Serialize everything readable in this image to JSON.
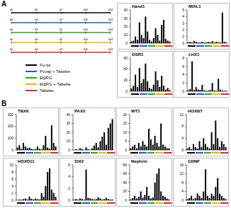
{
  "panel_labels": [
    "A",
    "B"
  ],
  "timeline": {
    "days": [
      "d0",
      "d3",
      "d7",
      "d10",
      "d14"
    ]
  },
  "protocols": [
    {
      "name": "Fu-Ipi",
      "color": "#000000"
    },
    {
      "name": "Pcvajt + Tabebe",
      "color": "#1f5fb4"
    },
    {
      "name": "EtβFG",
      "color": "#2ca02c"
    },
    {
      "name": "EtβFG + Tabebe",
      "color": "#e6b800"
    },
    {
      "name": "Tabebe",
      "color": "#d62728"
    }
  ],
  "chart_data": [
    {
      "type": "bar",
      "title": "Hand1",
      "categories": [
        null,
        null,
        null,
        null,
        null,
        null,
        null,
        null,
        null,
        null,
        null,
        null,
        null,
        null,
        null,
        null,
        null,
        null,
        null,
        null
      ],
      "values": [
        2,
        3,
        8,
        4,
        25,
        10,
        6,
        32,
        14,
        4,
        2,
        6,
        18,
        10,
        3,
        22,
        28,
        5,
        3,
        2
      ],
      "color": "#000000",
      "ylim": [
        0,
        40
      ],
      "yticks": [
        0,
        10,
        20,
        30,
        40
      ],
      "tick_labels": "y"
    },
    {
      "type": "bar",
      "title": "MIXL1",
      "categories": [
        null,
        null,
        null,
        null,
        null,
        null,
        null,
        null,
        null,
        null,
        null,
        null,
        null,
        null,
        null,
        null,
        null,
        null,
        null,
        null
      ],
      "values": [
        0.1,
        0.2,
        0.1,
        0.3,
        0.2,
        0.1,
        0.1,
        0.2,
        0.1,
        0.1,
        0.2,
        0.1,
        0.3,
        0.1,
        0.2,
        0.1,
        0.1,
        4.6,
        0.2,
        0.1
      ],
      "color": "#000000",
      "ylim": [
        0,
        5
      ],
      "yticks": [
        0,
        1,
        2,
        3,
        4,
        5
      ],
      "tick_labels": "y"
    },
    {
      "type": "bar",
      "title": "OSR1",
      "categories": [
        null,
        null,
        null,
        null,
        null,
        null,
        null,
        null,
        null,
        null,
        null,
        null,
        null,
        null,
        null,
        null,
        null,
        null,
        null,
        null
      ],
      "values": [
        5,
        10,
        30,
        8,
        42,
        15,
        22,
        50,
        18,
        6,
        4,
        12,
        36,
        20,
        8,
        28,
        10,
        3,
        6,
        2
      ],
      "color": "#000000",
      "ylim": [
        0,
        60
      ],
      "yticks": [
        0,
        20,
        40,
        60
      ],
      "tick_labels": "y"
    },
    {
      "type": "bar",
      "title": "LHX1",
      "categories": [
        null,
        null,
        null,
        null,
        null,
        null,
        null,
        null,
        null,
        null,
        null,
        null,
        null,
        null,
        null,
        null,
        null,
        null,
        null,
        null
      ],
      "values": [
        0.2,
        0.5,
        7.2,
        0.3,
        1,
        0.4,
        0.3,
        1.5,
        0.2,
        0.1,
        0.2,
        0.3,
        2,
        0.2,
        0.1,
        3,
        0.4,
        0.2,
        0.1,
        0.1
      ],
      "color": "#000000",
      "ylim": [
        0,
        8
      ],
      "yticks": [
        0,
        2,
        4,
        6,
        8
      ],
      "tick_labels": "y"
    },
    {
      "type": "bar",
      "title": "TBX6",
      "categories": [
        null,
        null,
        null,
        null,
        null,
        null,
        null,
        null,
        null,
        null,
        null,
        null,
        null,
        null,
        null,
        null,
        null,
        null,
        null,
        null
      ],
      "values": [
        20,
        40,
        10,
        60,
        30,
        15,
        20,
        10,
        5,
        8,
        30,
        10,
        5,
        40,
        120,
        20,
        10,
        210,
        60,
        30
      ],
      "color": "#000000",
      "ylim": [
        0,
        300
      ],
      "yticks": [
        0,
        100,
        200,
        300
      ],
      "tick_labels": "y"
    },
    {
      "type": "bar",
      "title": "PAX2",
      "categories": [
        null,
        null,
        null,
        null,
        null,
        null,
        null,
        null,
        null,
        null,
        null,
        null,
        null,
        null,
        null,
        null,
        null,
        null,
        null,
        null
      ],
      "values": [
        0,
        1,
        0,
        2,
        1,
        0,
        3,
        1,
        0,
        2,
        5,
        8,
        3,
        10,
        15,
        20,
        6,
        25,
        30,
        35
      ],
      "color": "#000000",
      "ylim": [
        0,
        40
      ],
      "yticks": [
        0,
        10,
        20,
        30,
        40
      ],
      "tick_labels": "y"
    },
    {
      "type": "bar",
      "title": "WT1",
      "categories": [
        null,
        null,
        null,
        null,
        null,
        null,
        null,
        null,
        null,
        null,
        null,
        null,
        null,
        null,
        null,
        null,
        null,
        null,
        null,
        null
      ],
      "values": [
        1,
        2,
        3,
        1,
        4,
        2,
        5,
        3,
        2,
        12,
        6,
        3,
        8,
        4,
        2,
        15,
        3,
        2,
        1,
        1
      ],
      "color": "#000000",
      "ylim": [
        0,
        20
      ],
      "yticks": [
        0,
        5,
        10,
        15,
        20
      ],
      "tick_labels": "y"
    },
    {
      "type": "bar",
      "title": "HOXB7",
      "categories": [
        null,
        null,
        null,
        null,
        null,
        null,
        null,
        null,
        null,
        null,
        null,
        null,
        null,
        null,
        null,
        null,
        null,
        null,
        null,
        null
      ],
      "values": [
        0.5,
        1,
        0.3,
        2,
        1,
        0.5,
        3,
        1,
        4,
        2,
        1,
        0.5,
        6,
        2,
        10,
        4,
        1,
        3,
        2,
        1
      ],
      "color": "#000000",
      "ylim": [
        0,
        12
      ],
      "yticks": [
        0,
        4,
        8,
        12
      ],
      "tick_labels": "y"
    },
    {
      "type": "bar",
      "title": "HOXD11",
      "categories": [
        null,
        null,
        null,
        null,
        null,
        null,
        null,
        null,
        null,
        null,
        null,
        null,
        null,
        null,
        null,
        null,
        null,
        null,
        null,
        null
      ],
      "values": [
        0,
        0.2,
        0.1,
        0.3,
        0.5,
        0.2,
        1,
        0.4,
        0.2,
        0.5,
        0.3,
        0.2,
        2,
        1,
        4,
        8,
        9,
        3,
        2,
        1
      ],
      "color": "#000000",
      "ylim": [
        0,
        10
      ],
      "yticks": [
        0,
        2,
        4,
        6,
        8,
        10
      ],
      "tick_labels": "y"
    },
    {
      "type": "bar",
      "title": "SIX2",
      "categories": [
        null,
        null,
        null,
        null,
        null,
        null,
        null,
        null,
        null,
        null,
        null,
        null,
        null,
        null,
        null,
        null,
        null,
        null,
        null,
        null
      ],
      "values": [
        0.1,
        0.2,
        0.1,
        0.3,
        0.2,
        0.1,
        5.2,
        0.4,
        0.3,
        0.2,
        0.1,
        0.2,
        0.5,
        0.3,
        0.1,
        0.2,
        0.4,
        0.2,
        0.1,
        0.1
      ],
      "color": "#000000",
      "ylim": [
        0,
        6
      ],
      "yticks": [
        0,
        2,
        4,
        6
      ],
      "tick_labels": "y"
    },
    {
      "type": "bar",
      "title": "Nephrin",
      "categories": [
        null,
        null,
        null,
        null,
        null,
        null,
        null,
        null,
        null,
        null,
        null,
        null,
        null,
        null,
        null,
        null,
        null,
        null,
        null,
        null
      ],
      "values": [
        2,
        5,
        10,
        4,
        8,
        20,
        6,
        12,
        30,
        10,
        4,
        6,
        40,
        60,
        72,
        20,
        10,
        8,
        4,
        2
      ],
      "color": "#000000",
      "ylim": [
        0,
        80
      ],
      "yticks": [
        0,
        20,
        40,
        60,
        80
      ],
      "tick_labels": "y"
    },
    {
      "type": "bar",
      "title": "GDNF",
      "categories": [
        null,
        null,
        null,
        null,
        null,
        null,
        null,
        null,
        null,
        null,
        null,
        null,
        null,
        null,
        null,
        null,
        null,
        null,
        null,
        null
      ],
      "values": [
        0.5,
        1,
        2,
        0.5,
        1,
        3,
        2,
        1,
        4,
        14,
        2,
        1,
        3,
        2,
        6,
        10,
        3,
        2,
        1,
        0.5
      ],
      "color": "#000000",
      "ylim": [
        0,
        16
      ],
      "yticks": [
        0,
        4,
        8,
        12,
        16
      ],
      "tick_labels": "y"
    }
  ]
}
